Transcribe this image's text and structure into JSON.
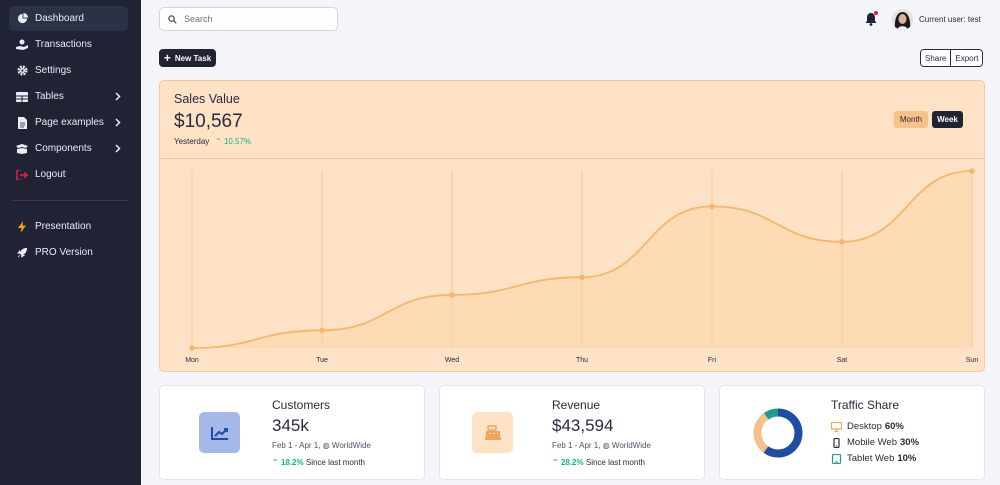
{
  "sidebar": {
    "items": [
      {
        "label": "Dashboard",
        "icon": "pie-chart-icon"
      },
      {
        "label": "Transactions",
        "icon": "hand-holding-dollar-icon"
      },
      {
        "label": "Settings",
        "icon": "gear-icon"
      },
      {
        "label": "Tables",
        "icon": "table-icon"
      },
      {
        "label": "Page examples",
        "icon": "document-icon"
      },
      {
        "label": "Components",
        "icon": "box-open-icon"
      },
      {
        "label": "Logout",
        "icon": "sign-out-icon"
      }
    ],
    "extras": [
      {
        "label": "Presentation",
        "icon": "lightning-icon"
      },
      {
        "label": "PRO Version",
        "icon": "rocket-icon"
      }
    ]
  },
  "search": {
    "placeholder": "Search"
  },
  "user": {
    "label": "Current user: test"
  },
  "actions": {
    "new_task": "New Task",
    "share": "Share",
    "export": "Export"
  },
  "sales": {
    "title": "Sales Value",
    "value": "$10,567",
    "period": "Yesterday",
    "change": "10.57%",
    "toggle_month": "Month",
    "toggle_week": "Week"
  },
  "chart_data": {
    "type": "line",
    "categories": [
      "Mon",
      "Tue",
      "Wed",
      "Thu",
      "Fri",
      "Sat",
      "Sun"
    ],
    "values": [
      0,
      10,
      30,
      40,
      80,
      60,
      100
    ],
    "ylim": [
      0,
      100
    ],
    "grid": "vertical",
    "colors": {
      "line": "#f7b66c",
      "area": "#fbd5a8",
      "grid": "#f2c79a"
    }
  },
  "cards": {
    "customers": {
      "title": "Customers",
      "value": "345k",
      "range": "Feb 1 - Apr 1,",
      "region": "WorldWide",
      "change": "18.2%",
      "since": "Since last month"
    },
    "revenue": {
      "title": "Revenue",
      "value": "$43,594",
      "range": "Feb 1 - Apr 1,",
      "region": "WorldWide",
      "change": "28.2%",
      "since": "Since last month"
    },
    "traffic": {
      "title": "Traffic Share",
      "rows": [
        {
          "label": "Desktop",
          "value": "60%",
          "icon": "desktop-icon"
        },
        {
          "label": "Mobile Web",
          "value": "30%",
          "icon": "mobile-icon"
        },
        {
          "label": "Tablet Web",
          "value": "10%",
          "icon": "tablet-icon"
        }
      ],
      "donut": [
        60,
        30,
        10
      ],
      "colors": [
        "#1e4ea3",
        "#f5c08a",
        "#1e9e8a"
      ]
    }
  }
}
